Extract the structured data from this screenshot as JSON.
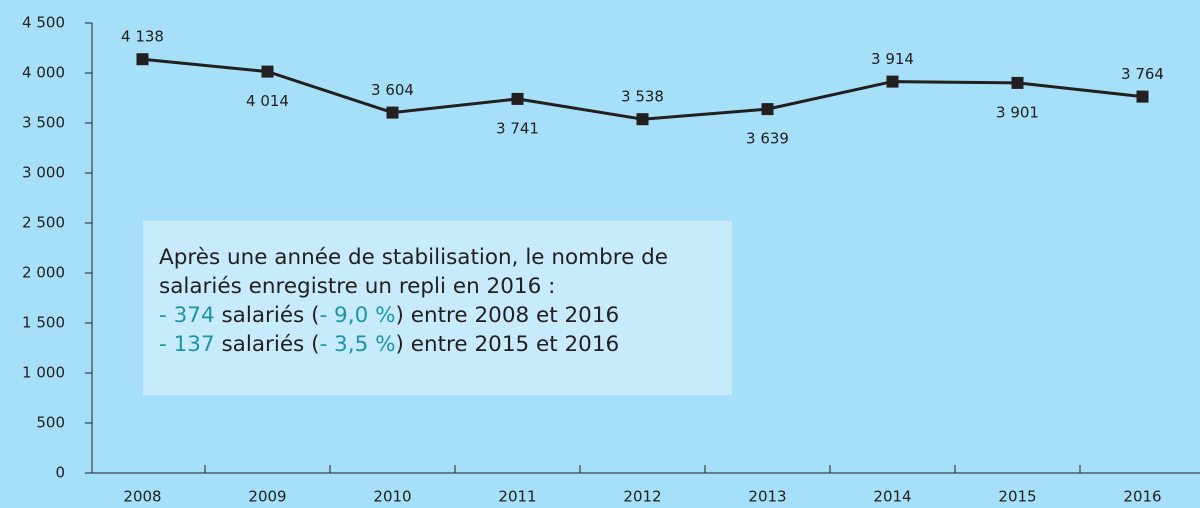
{
  "chart_data": {
    "type": "line",
    "categories": [
      "2008",
      "2009",
      "2010",
      "2011",
      "2012",
      "2013",
      "2014",
      "2015",
      "2016"
    ],
    "series": [
      {
        "color": "#231f20",
        "values": [
          4138,
          4014,
          3604,
          3741,
          3538,
          3639,
          3914,
          3901,
          3764
        ],
        "value_labels": [
          "4 138",
          "4 014",
          "3 604",
          "3 741",
          "3 538",
          "3 639",
          "3 914",
          "3 901",
          "3 764"
        ]
      }
    ],
    "ylim": [
      0,
      4500
    ],
    "yticks": [
      0,
      500,
      {
        "value": 1000,
        "label": "1 000"
      },
      {
        "value": 1500,
        "label": "1 500"
      },
      {
        "value": 2000,
        "label": "2 000"
      },
      {
        "value": 2500,
        "label": "2 500"
      },
      {
        "value": 3000,
        "label": "3 000"
      },
      {
        "value": 3500,
        "label": "3 500"
      },
      {
        "value": 4000,
        "label": "4 000"
      },
      {
        "value": 4500,
        "label": "4 500"
      }
    ],
    "annotation": {
      "intro": "Après une année de stabilisation, le nombre de salariés enregistre un repli en 2016 :",
      "highlight_color": "#1a96a6",
      "items": [
        [
          "- 374",
          " salariés (",
          "- 9,0 %",
          ") entre 2008 et 2016"
        ],
        [
          "- 137",
          " salariés (",
          "- 3,5 %",
          ") entre 2015 et 2016"
        ]
      ]
    }
  }
}
